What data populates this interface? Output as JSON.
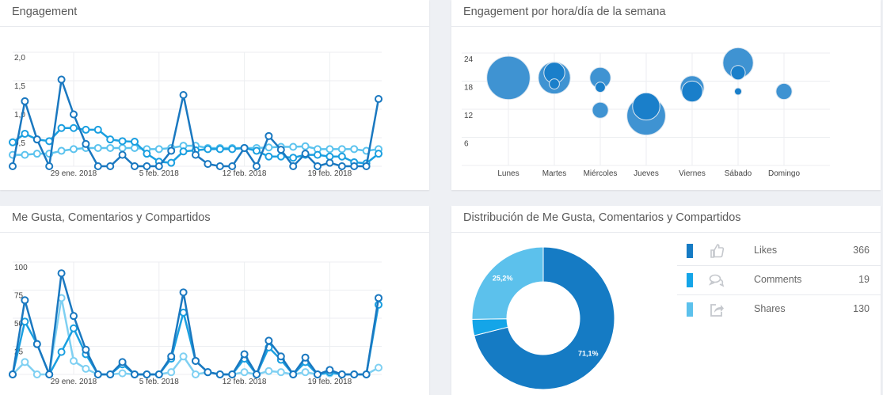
{
  "panels": {
    "engagement": {
      "title": "Engagement"
    },
    "heatmap": {
      "title": "Engagement por hora/día de la semana"
    },
    "interactions": {
      "title": "Me Gusta, Comentarios y Compartidos"
    },
    "distribution": {
      "title": "Distribución de Me Gusta, Comentarios y Compartidos"
    }
  },
  "legend": [
    {
      "label": "Likes",
      "value": "366",
      "color": "#157bc4",
      "icon": "thumbs-up-icon"
    },
    {
      "label": "Comments",
      "value": "19",
      "color": "#14a5e8",
      "icon": "comments-icon"
    },
    {
      "label": "Shares",
      "value": "130",
      "color": "#5cc1ec",
      "icon": "share-icon"
    }
  ],
  "chart_data": [
    {
      "type": "line",
      "title": "Engagement",
      "x_start": "24 ene. 2018",
      "x_end": "23 feb. 2018",
      "xticks": [
        "29 ene. 2018",
        "5 feb. 2018",
        "12 feb. 2018",
        "19 feb. 2018"
      ],
      "xtick_index": [
        5,
        12,
        19,
        26
      ],
      "yticks": [
        "2,0",
        "1,5",
        "1,0",
        "0,5"
      ],
      "ytick_values": [
        2,
        1.5,
        1,
        0.5
      ],
      "ylim": [
        0,
        2
      ],
      "series": [
        {
          "name": "series-1",
          "color": "#1a78c0",
          "values": [
            0,
            1.14,
            0.47,
            0,
            1.52,
            0.91,
            0.39,
            0,
            0,
            0.2,
            0,
            0,
            0,
            0.27,
            1.25,
            0.2,
            0.04,
            0,
            0,
            0.32,
            0,
            0.53,
            0.29,
            0,
            0.22,
            0,
            0.06,
            0,
            0,
            0,
            1.18
          ]
        },
        {
          "name": "series-2",
          "color": "#1a9fe0",
          "values": [
            0.42,
            0.57,
            0.47,
            0.44,
            0.67,
            0.67,
            0.64,
            0.64,
            0.47,
            0.44,
            0.43,
            0.22,
            0.08,
            0.06,
            0.26,
            0.28,
            0.3,
            0.3,
            0.3,
            0.32,
            0.27,
            0.17,
            0.17,
            0.15,
            0.2,
            0.2,
            0.17,
            0.17,
            0.07,
            0.05,
            0.22
          ]
        },
        {
          "name": "series-3",
          "color": "#5cc3ee",
          "values": [
            0.2,
            0.2,
            0.22,
            0.22,
            0.27,
            0.3,
            0.32,
            0.32,
            0.32,
            0.32,
            0.32,
            0.3,
            0.3,
            0.32,
            0.36,
            0.36,
            0.32,
            0.32,
            0.32,
            0.32,
            0.32,
            0.33,
            0.34,
            0.34,
            0.35,
            0.3,
            0.3,
            0.3,
            0.3,
            0.27,
            0.3
          ]
        }
      ]
    },
    {
      "type": "scatter",
      "title": "Engagement por hora/día de la semana",
      "categories": [
        "Lunes",
        "Martes",
        "Miércoles",
        "Jueves",
        "Viernes",
        "Sábado",
        "Domingo"
      ],
      "yticks": [
        "24",
        "18",
        "12",
        "6"
      ],
      "ytick_values": [
        24,
        18,
        12,
        6
      ],
      "ylim": [
        0,
        24
      ],
      "points": [
        {
          "day": 0,
          "y": 18.7,
          "size": 73,
          "dark": false
        },
        {
          "day": 1,
          "y": 18.7,
          "size": 40,
          "dark": false
        },
        {
          "day": 1,
          "y": 19.8,
          "size": 17,
          "dark": true
        },
        {
          "day": 1,
          "y": 17.4,
          "size": 4,
          "dark": true
        },
        {
          "day": 2,
          "y": 18.7,
          "size": 17,
          "dark": false
        },
        {
          "day": 2,
          "y": 16.7,
          "size": 4,
          "dark": true
        },
        {
          "day": 2,
          "y": 11.8,
          "size": 10,
          "dark": false
        },
        {
          "day": 3,
          "y": 10.6,
          "size": 58,
          "dark": false
        },
        {
          "day": 3,
          "y": 12.6,
          "size": 29,
          "dark": true
        },
        {
          "day": 4,
          "y": 16.6,
          "size": 22,
          "dark": false
        },
        {
          "day": 4,
          "y": 15.8,
          "size": 17,
          "dark": true
        },
        {
          "day": 5,
          "y": 21.9,
          "size": 36,
          "dark": false
        },
        {
          "day": 5,
          "y": 19.8,
          "size": 8,
          "dark": true
        },
        {
          "day": 5,
          "y": 15.8,
          "size": 2,
          "dark": true
        },
        {
          "day": 6,
          "y": 15.8,
          "size": 10,
          "dark": false
        }
      ]
    },
    {
      "type": "line",
      "title": "Me Gusta, Comentarios y Compartidos",
      "xticks": [
        "29 ene. 2018",
        "5 feb. 2018",
        "12 feb. 2018",
        "19 feb. 2018"
      ],
      "xtick_index": [
        5,
        12,
        19,
        26
      ],
      "yticks": [
        "100",
        "75",
        "50",
        "25"
      ],
      "ytick_values": [
        100,
        75,
        50,
        25
      ],
      "ylim": [
        0,
        100
      ],
      "series": [
        {
          "name": "series-1",
          "color": "#1a78c0",
          "values": [
            0,
            66,
            27,
            0,
            90,
            52,
            22,
            0,
            0,
            11,
            0,
            0,
            0,
            16,
            73,
            12,
            2,
            0,
            0,
            18,
            0,
            30,
            16,
            0,
            15,
            0,
            4,
            0,
            0,
            0,
            68
          ]
        },
        {
          "name": "series-2",
          "color": "#1a9fe0",
          "values": [
            0,
            47,
            27,
            0,
            20,
            41,
            18,
            0,
            0,
            9,
            0,
            0,
            0,
            14,
            55,
            12,
            2,
            0,
            0,
            14,
            0,
            24,
            13,
            0,
            11,
            0,
            2,
            0,
            0,
            0,
            62
          ]
        },
        {
          "name": "series-3",
          "color": "#7fd0f2",
          "values": [
            0,
            11,
            0,
            0,
            68,
            12,
            5,
            0,
            0,
            1,
            0,
            0,
            0,
            2,
            16,
            0,
            2,
            0,
            0,
            2,
            0,
            3,
            2,
            0,
            2,
            0,
            1,
            0,
            0,
            0,
            6
          ]
        }
      ]
    },
    {
      "type": "pie",
      "title": "Distribución de Me Gusta, Comentarios y Compartidos",
      "labels": [
        "Likes",
        "Comments",
        "Shares"
      ],
      "values": [
        366,
        19,
        130
      ],
      "percent_labels": [
        "71,1%",
        "",
        "25,2%"
      ],
      "colors": [
        "#157bc4",
        "#14a5e8",
        "#5cc1ec"
      ]
    }
  ]
}
